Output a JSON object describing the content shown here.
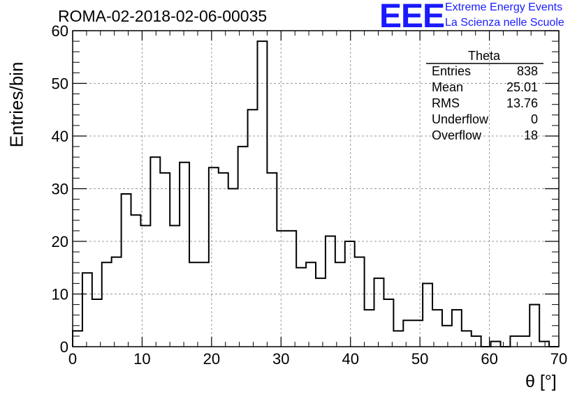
{
  "title": "ROMA-02-2018-02-06-00035",
  "logo": {
    "mark": "EEE",
    "line1": "Extreme Energy Events",
    "line2": "La Scienza nelle Scuole",
    "color": "#1a1aff"
  },
  "stats": {
    "title": "Theta",
    "rows": [
      {
        "label": "Entries",
        "value": "838"
      },
      {
        "label": "Mean",
        "value": "25.01"
      },
      {
        "label": "RMS",
        "value": "13.76"
      },
      {
        "label": "Underflow",
        "value": "0"
      },
      {
        "label": "Overflow",
        "value": "18"
      }
    ]
  },
  "chart_data": {
    "type": "bar",
    "title": "ROMA-02-2018-02-06-00035",
    "xlabel": "θ [°]",
    "ylabel": "Entries/bin",
    "xlim": [
      0,
      70
    ],
    "ylim": [
      0,
      60
    ],
    "bin_width": 1.4,
    "x_ticks": [
      "0",
      "10",
      "20",
      "30",
      "40",
      "50",
      "60",
      "70"
    ],
    "y_ticks": [
      "0",
      "10",
      "20",
      "30",
      "40",
      "50",
      "60"
    ],
    "values": [
      3,
      14,
      9,
      16,
      17,
      29,
      25,
      23,
      36,
      33,
      23,
      35,
      16,
      16,
      34,
      33,
      30,
      38,
      45,
      58,
      33,
      22,
      22,
      15,
      16,
      13,
      21,
      16,
      20,
      17,
      7,
      13,
      9,
      3,
      5,
      5,
      12,
      7,
      4,
      7,
      3,
      2,
      0,
      1,
      0,
      2,
      2,
      8,
      1,
      0
    ],
    "grid": true,
    "legend": "none"
  }
}
